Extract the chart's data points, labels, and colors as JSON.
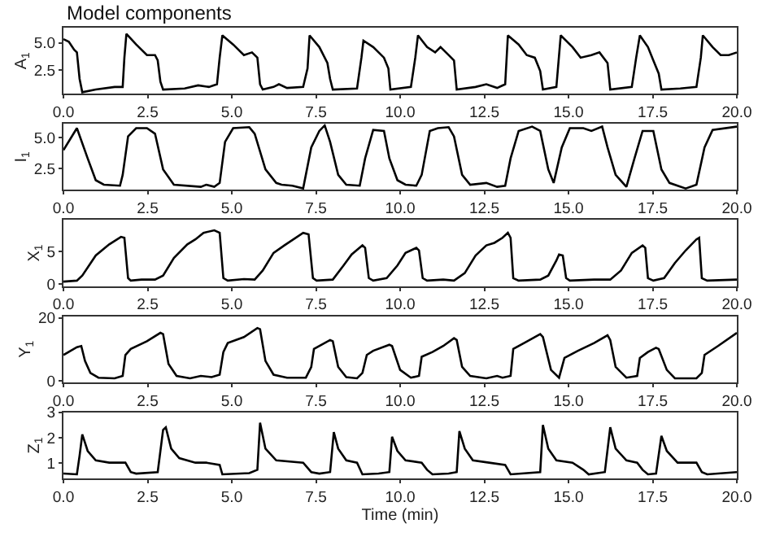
{
  "chart_data": [
    {
      "type": "line",
      "title": "Model components",
      "ylabel": "A$_{1}$",
      "color": "#000000",
      "xlim": [
        0,
        20
      ],
      "xticks": [
        {
          "value": 0,
          "label": "0.0"
        },
        2.5,
        {
          "value": 5,
          "label": "5.0"
        },
        7.5,
        {
          "value": 10,
          "label": "10.0"
        },
        12.5,
        {
          "value": 15,
          "label": "15.0"
        },
        17.5,
        {
          "value": 20,
          "label": "20.0"
        }
      ],
      "ylim": [
        0.3,
        6.4
      ],
      "yticks": [
        2.5,
        {
          "value": 5,
          "label": "5.0"
        }
      ],
      "x": [
        0,
        0.16,
        0.32,
        0.4,
        0.48,
        0.56,
        0.96,
        1.52,
        1.76,
        1.81,
        1.87,
        2.16,
        2.48,
        2.72,
        2.8,
        2.88,
        2.96,
        3.6,
        4.0,
        4.32,
        4.56,
        4.64,
        4.72,
        5.04,
        5.36,
        5.6,
        5.76,
        5.84,
        5.92,
        6.24,
        6.4,
        6.64,
        7.12,
        7.25,
        7.31,
        7.6,
        7.84,
        7.92,
        8.0,
        8.72,
        8.85,
        8.91,
        9.2,
        9.52,
        9.65,
        9.71,
        10.32,
        10.45,
        10.53,
        10.8,
        11.04,
        11.2,
        11.44,
        11.6,
        11.68,
        12.24,
        12.56,
        12.88,
        13.12,
        13.2,
        13.52,
        13.76,
        14.0,
        14.16,
        14.24,
        14.64,
        14.77,
        15.12,
        15.36,
        15.68,
        15.92,
        16.16,
        16.24,
        16.88,
        17.01,
        17.12,
        17.36,
        17.52,
        17.68,
        17.76,
        18.32,
        18.8,
        18.93,
        18.99,
        19.28,
        19.52,
        19.76,
        20.0
      ],
      "values": [
        5.34,
        5.1,
        4.36,
        4.12,
        1.67,
        0.44,
        0.69,
        0.93,
        0.93,
        3.63,
        5.83,
        4.85,
        3.87,
        3.87,
        3.38,
        1.42,
        0.69,
        0.79,
        1.08,
        0.93,
        1.18,
        3.63,
        5.69,
        4.85,
        3.87,
        4.12,
        3.63,
        1.18,
        0.69,
        0.93,
        1.18,
        0.84,
        0.93,
        2.65,
        5.69,
        4.61,
        3.14,
        1.67,
        0.69,
        0.79,
        3.63,
        5.2,
        4.61,
        3.63,
        2.65,
        0.69,
        0.93,
        3.63,
        5.69,
        4.61,
        4.12,
        4.61,
        3.87,
        3.38,
        0.69,
        0.93,
        1.18,
        0.84,
        1.18,
        5.69,
        4.85,
        3.87,
        3.63,
        2.4,
        0.69,
        0.93,
        5.69,
        4.61,
        3.63,
        3.87,
        4.12,
        3.14,
        0.69,
        0.93,
        3.63,
        5.69,
        4.61,
        3.38,
        2.16,
        0.69,
        0.79,
        0.93,
        3.63,
        5.69,
        4.61,
        3.87,
        3.87,
        4.12
      ]
    },
    {
      "type": "line",
      "ylabel": "I$_{1}$",
      "color": "#000000",
      "xlim": [
        0,
        20
      ],
      "xticks": [
        {
          "value": 0,
          "label": "0.0"
        },
        2.5,
        {
          "value": 5,
          "label": "5.0"
        },
        7.5,
        {
          "value": 10,
          "label": "10.0"
        },
        12.5,
        {
          "value": 15,
          "label": "15.0"
        },
        17.5,
        {
          "value": 20,
          "label": "20.0"
        }
      ],
      "ylim": [
        0.8,
        6.1
      ],
      "yticks": [
        2.5,
        {
          "value": 5,
          "label": "5.0"
        }
      ],
      "x": [
        0,
        0.4,
        0.72,
        0.96,
        1.2,
        1.68,
        1.76,
        1.92,
        2.16,
        2.48,
        2.72,
        2.96,
        3.28,
        4.08,
        4.24,
        4.48,
        4.64,
        4.8,
        5.04,
        5.52,
        5.68,
        6.0,
        6.32,
        6.48,
        6.8,
        7.12,
        7.36,
        7.6,
        7.76,
        7.92,
        8.16,
        8.4,
        8.8,
        8.96,
        9.2,
        9.52,
        9.68,
        9.92,
        10.16,
        10.48,
        10.64,
        10.88,
        11.12,
        11.44,
        11.6,
        11.84,
        12.08,
        12.56,
        12.88,
        13.12,
        13.28,
        13.52,
        13.92,
        14.16,
        14.4,
        14.56,
        14.8,
        15.04,
        15.44,
        15.68,
        16.0,
        16.16,
        16.4,
        16.72,
        16.96,
        17.2,
        17.52,
        17.76,
        18.0,
        18.48,
        18.8,
        19.04,
        19.28,
        20.0
      ],
      "values": [
        3.99,
        5.75,
        3.33,
        1.58,
        1.22,
        1.14,
        2.01,
        5.09,
        5.75,
        5.75,
        5.31,
        2.45,
        1.22,
        1.05,
        1.22,
        1.05,
        1.36,
        4.65,
        5.75,
        5.83,
        5.31,
        2.45,
        1.36,
        1.22,
        1.14,
        0.92,
        4.21,
        5.53,
        5.97,
        4.65,
        2.01,
        1.22,
        1.14,
        3.33,
        5.61,
        5.53,
        3.33,
        1.58,
        1.22,
        1.14,
        2.01,
        5.53,
        5.75,
        5.83,
        5.09,
        2.01,
        1.22,
        1.36,
        1.05,
        1.14,
        3.33,
        5.53,
        5.88,
        5.53,
        2.45,
        1.36,
        4.21,
        5.75,
        5.75,
        5.53,
        5.88,
        4.21,
        2.01,
        1.05,
        3.33,
        5.53,
        5.53,
        2.45,
        1.36,
        0.92,
        1.22,
        4.21,
        5.61,
        5.88
      ]
    },
    {
      "type": "line",
      "ylabel": "X$_{1}$",
      "color": "#000000",
      "xlim": [
        0,
        20
      ],
      "xticks": [
        {
          "value": 0,
          "label": "0.0"
        },
        2.5,
        {
          "value": 5,
          "label": "5.0"
        },
        7.5,
        {
          "value": 10,
          "label": "10.0"
        },
        12.5,
        {
          "value": 15,
          "label": "15.0"
        },
        17.5,
        {
          "value": 20,
          "label": "20.0"
        }
      ],
      "ylim": [
        -0.3,
        9.8
      ],
      "yticks": [
        0,
        5
      ],
      "x": [
        0,
        0.4,
        0.56,
        0.96,
        1.36,
        1.71,
        1.81,
        1.92,
        2.0,
        2.32,
        2.72,
        2.96,
        3.28,
        3.68,
        3.92,
        4.16,
        4.48,
        4.64,
        4.75,
        4.88,
        5.36,
        5.68,
        5.92,
        6.24,
        6.56,
        7.12,
        7.28,
        7.41,
        7.52,
        8.0,
        8.32,
        8.56,
        8.88,
        8.96,
        9.07,
        9.2,
        9.6,
        9.92,
        10.16,
        10.48,
        10.56,
        10.67,
        10.8,
        11.28,
        11.6,
        11.92,
        12.24,
        12.56,
        12.8,
        13.04,
        13.2,
        13.28,
        13.36,
        13.52,
        14.16,
        14.4,
        14.64,
        14.72,
        14.83,
        14.93,
        15.04,
        15.76,
        16.24,
        16.56,
        16.88,
        17.2,
        17.28,
        17.36,
        17.52,
        17.84,
        18.16,
        18.48,
        18.8,
        18.88,
        18.96,
        19.12,
        20.0
      ],
      "values": [
        0.38,
        0.54,
        1.31,
        4.38,
        6.08,
        7.23,
        7.08,
        0.92,
        0.54,
        0.69,
        0.69,
        1.31,
        4.0,
        6.08,
        6.84,
        7.84,
        8.23,
        7.84,
        0.92,
        0.54,
        0.77,
        0.69,
        2.08,
        4.77,
        5.92,
        7.84,
        7.61,
        0.92,
        0.54,
        0.69,
        2.85,
        4.54,
        5.92,
        5.54,
        0.92,
        0.54,
        0.92,
        2.85,
        4.77,
        5.54,
        5.15,
        0.92,
        0.54,
        0.69,
        0.54,
        1.69,
        4.38,
        5.92,
        6.31,
        7.08,
        7.84,
        7.08,
        0.92,
        0.54,
        0.69,
        1.31,
        3.61,
        4.54,
        4.38,
        0.92,
        0.54,
        0.69,
        0.69,
        2.08,
        4.77,
        5.92,
        5.54,
        0.92,
        0.54,
        0.92,
        3.23,
        5.15,
        6.84,
        7.08,
        0.92,
        0.54,
        0.69
      ]
    },
    {
      "type": "line",
      "ylabel": "Y$_{1}$",
      "color": "#000000",
      "xlim": [
        0,
        20
      ],
      "xticks": [
        {
          "value": 0,
          "label": "0.0"
        },
        2.5,
        {
          "value": 5,
          "label": "5.0"
        },
        7.5,
        {
          "value": 10,
          "label": "10.0"
        },
        12.5,
        {
          "value": 15,
          "label": "15.0"
        },
        17.5,
        {
          "value": 20,
          "label": "20.0"
        }
      ],
      "ylim": [
        -0.5,
        20.5
      ],
      "yticks": [
        0,
        20
      ],
      "x": [
        0,
        0.4,
        0.53,
        0.64,
        0.8,
        1.04,
        1.52,
        1.76,
        1.84,
        2.0,
        2.48,
        2.88,
        2.96,
        3.12,
        3.36,
        3.76,
        4.08,
        4.4,
        4.64,
        4.75,
        4.88,
        5.36,
        5.76,
        5.84,
        6.0,
        6.24,
        6.64,
        7.2,
        7.36,
        7.44,
        7.92,
        8.0,
        8.16,
        8.4,
        8.72,
        8.88,
        9.01,
        9.2,
        9.68,
        9.76,
        10.0,
        10.32,
        10.56,
        10.64,
        10.96,
        11.28,
        11.6,
        11.68,
        11.84,
        12.08,
        12.56,
        12.88,
        13.04,
        13.28,
        13.36,
        13.68,
        14.16,
        14.24,
        14.48,
        14.72,
        14.88,
        15.28,
        15.76,
        16.16,
        16.24,
        16.4,
        16.72,
        17.04,
        17.12,
        17.36,
        17.6,
        17.68,
        17.92,
        18.16,
        18.8,
        18.96,
        19.04,
        19.44,
        20.0
      ],
      "values": [
        8.17,
        10.64,
        11.02,
        6.27,
        2.47,
        0.95,
        0.76,
        1.52,
        8.17,
        10.07,
        12.54,
        15.2,
        14.82,
        5.32,
        1.52,
        0.76,
        1.52,
        1.14,
        1.9,
        9.12,
        11.97,
        13.87,
        16.72,
        16.34,
        6.27,
        1.9,
        0.95,
        0.95,
        4.37,
        10.07,
        12.92,
        12.54,
        4.37,
        1.14,
        0.76,
        2.47,
        8.17,
        9.5,
        11.4,
        11.02,
        3.42,
        0.95,
        1.52,
        7.6,
        9.12,
        11.02,
        13.49,
        12.92,
        4.37,
        1.52,
        0.76,
        1.52,
        0.95,
        1.52,
        10.07,
        11.97,
        14.82,
        13.87,
        3.42,
        0.95,
        7.22,
        9.5,
        11.97,
        14.44,
        12.92,
        4.37,
        0.95,
        1.52,
        7.22,
        9.12,
        10.45,
        10.07,
        3.42,
        0.76,
        0.76,
        2.47,
        8.17,
        11.02,
        15.2
      ]
    },
    {
      "type": "line",
      "ylabel": "Z$_{1}$",
      "xlabel": "Time (min)",
      "color": "#000000",
      "xlim": [
        0,
        20
      ],
      "xticks": [
        {
          "value": 0,
          "label": "0.0"
        },
        2.5,
        {
          "value": 5,
          "label": "5.0"
        },
        7.5,
        {
          "value": 10,
          "label": "10.0"
        },
        12.5,
        {
          "value": 15,
          "label": "15.0"
        },
        17.5,
        {
          "value": 20,
          "label": "20.0"
        }
      ],
      "ylim": [
        0.4,
        3.0
      ],
      "yticks": [
        1,
        2,
        3
      ],
      "x": [
        0,
        0.4,
        0.48,
        0.56,
        0.72,
        0.96,
        1.36,
        1.84,
        2.0,
        2.16,
        2.8,
        2.96,
        3.04,
        3.2,
        3.44,
        3.92,
        4.24,
        4.64,
        4.72,
        5.52,
        5.76,
        5.84,
        6.0,
        6.32,
        7.12,
        7.36,
        7.6,
        7.92,
        8.03,
        8.16,
        8.4,
        8.72,
        8.88,
        9.36,
        9.68,
        9.76,
        9.92,
        10.16,
        10.64,
        10.8,
        10.96,
        11.44,
        11.68,
        11.76,
        11.92,
        12.16,
        12.64,
        13.12,
        13.28,
        14.16,
        14.24,
        14.4,
        14.64,
        15.12,
        15.44,
        15.6,
        16.08,
        16.24,
        16.4,
        16.72,
        17.04,
        17.2,
        17.36,
        17.6,
        17.76,
        17.92,
        18.24,
        18.8,
        18.96,
        19.12,
        20.0
      ],
      "values": [
        0.59,
        0.56,
        1.3,
        2.13,
        1.48,
        1.11,
        1.02,
        1.02,
        0.65,
        0.59,
        0.65,
        2.31,
        2.41,
        1.57,
        1.2,
        1.02,
        1.02,
        0.93,
        0.56,
        0.61,
        0.74,
        2.59,
        1.57,
        1.11,
        1.02,
        0.65,
        0.59,
        0.65,
        2.22,
        1.57,
        1.11,
        1.02,
        0.56,
        0.59,
        0.65,
        2.04,
        1.48,
        1.11,
        1.02,
        0.74,
        0.56,
        0.59,
        0.65,
        2.26,
        1.57,
        1.11,
        1.02,
        0.93,
        0.56,
        0.65,
        2.5,
        1.57,
        1.11,
        1.02,
        0.74,
        0.56,
        0.65,
        2.41,
        1.57,
        1.11,
        1.02,
        0.74,
        0.56,
        0.59,
        2.07,
        1.48,
        1.02,
        1.02,
        0.65,
        0.56,
        0.65
      ]
    }
  ]
}
